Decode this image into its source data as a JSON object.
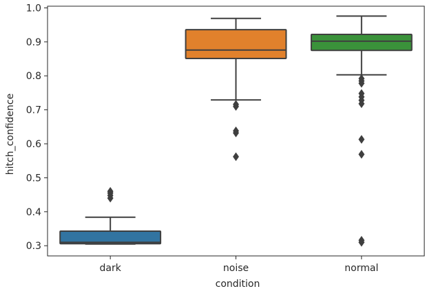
{
  "chart_data": {
    "type": "box",
    "xlabel": "condition",
    "ylabel": "hitch_confidence",
    "ylim": [
      0.27,
      1.005
    ],
    "yticks": [
      0.3,
      0.4,
      0.5,
      0.6,
      0.7,
      0.8,
      0.9,
      1.0
    ],
    "ytick_labels": [
      "0.3",
      "0.4",
      "0.5",
      "0.6",
      "0.7",
      "0.8",
      "0.9",
      "1.0"
    ],
    "grid": false,
    "legend": "none",
    "boxes": [
      {
        "category": "dark",
        "color": "#3274a1",
        "whisker_low": 0.305,
        "q1": 0.306,
        "median": 0.31,
        "q3": 0.343,
        "whisker_high": 0.384,
        "outliers": [
          0.44,
          0.448,
          0.455,
          0.46
        ]
      },
      {
        "category": "noise",
        "color": "#e1812c",
        "whisker_low": 0.729,
        "q1": 0.851,
        "median": 0.876,
        "q3": 0.936,
        "whisker_high": 0.969,
        "outliers": [
          0.71,
          0.716,
          0.632,
          0.638,
          0.562
        ]
      },
      {
        "category": "normal",
        "color": "#3a923a",
        "whisker_low": 0.803,
        "q1": 0.875,
        "median": 0.902,
        "q3": 0.922,
        "whisker_high": 0.976,
        "outliers": [
          0.792,
          0.785,
          0.778,
          0.748,
          0.738,
          0.728,
          0.718,
          0.613,
          0.569,
          0.316,
          0.31
        ]
      }
    ]
  }
}
